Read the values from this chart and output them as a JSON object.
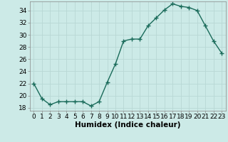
{
  "title": "",
  "xlabel": "Humidex (Indice chaleur)",
  "ylabel": "",
  "x": [
    0,
    1,
    2,
    3,
    4,
    5,
    6,
    7,
    8,
    9,
    10,
    11,
    12,
    13,
    14,
    15,
    16,
    17,
    18,
    19,
    20,
    21,
    22,
    23
  ],
  "y": [
    22,
    19.5,
    18.5,
    19,
    19,
    19,
    19,
    18.3,
    19,
    22.2,
    25.2,
    29,
    29.3,
    29.3,
    31.5,
    32.8,
    34.1,
    35.1,
    34.7,
    34.5,
    34,
    31.5,
    29,
    27
  ],
  "line_color": "#1a6b5a",
  "marker": "+",
  "marker_size": 4,
  "bg_color": "#cceae7",
  "grid_color": "#b8d8d5",
  "ylim": [
    17.5,
    35.5
  ],
  "yticks": [
    18,
    20,
    22,
    24,
    26,
    28,
    30,
    32,
    34
  ],
  "xlim": [
    -0.5,
    23.5
  ],
  "tick_fontsize": 6.5,
  "xlabel_fontsize": 7.5
}
